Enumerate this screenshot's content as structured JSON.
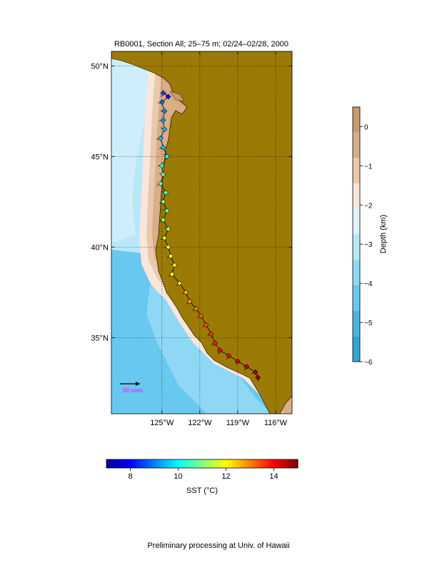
{
  "title": "RB0001, Section All; 25–75 m; 02/24–02/28, 2000",
  "footer": "Preliminary processing at Univ. of Hawaii",
  "map": {
    "lon_range": [
      -129,
      -114.7
    ],
    "lat_range": [
      30.8,
      50.8
    ],
    "lon_ticks": [
      {
        "value": -125,
        "label": "125°W"
      },
      {
        "value": -122,
        "label": "122°W"
      },
      {
        "value": -119,
        "label": "119°W"
      },
      {
        "value": -116,
        "label": "116°W"
      }
    ],
    "lat_ticks": [
      {
        "value": 50,
        "label": "50°N"
      },
      {
        "value": 45,
        "label": "45°N"
      },
      {
        "value": 40,
        "label": "40°N"
      },
      {
        "value": 35,
        "label": "35°N"
      }
    ],
    "grid": "dotted",
    "land_color": "#9b7a05",
    "scale_arrow": {
      "label": "50 cm/s",
      "color": "#ff00ff",
      "placement": "bottom-left"
    }
  },
  "depth_colorbar": {
    "label": "Depth (km)",
    "range": [
      -6,
      0.5
    ],
    "ticks": [
      {
        "value": 0,
        "label": "0"
      },
      {
        "value": -1,
        "label": "−1"
      },
      {
        "value": -2,
        "label": "−2"
      },
      {
        "value": -3,
        "label": "−3"
      },
      {
        "value": -4,
        "label": "−4"
      },
      {
        "value": -5,
        "label": "−5"
      },
      {
        "value": -6,
        "label": "−6"
      }
    ],
    "colors": [
      "#2ea6d6",
      "#49b5e3",
      "#68c8f0",
      "#8fd8f5",
      "#b8e8f8",
      "#ddf3fb",
      "#f8e6dc",
      "#e9c8ac",
      "#d9ad86",
      "#c99a6a"
    ],
    "placement": "right"
  },
  "sst_colorbar": {
    "label": "SST (°C)",
    "range": [
      7,
      15
    ],
    "ticks": [
      {
        "value": 8,
        "label": "8"
      },
      {
        "value": 10,
        "label": "10"
      },
      {
        "value": 12,
        "label": "12"
      },
      {
        "value": 14,
        "label": "14"
      }
    ],
    "colormap": [
      "#00008f",
      "#0000ff",
      "#0080ff",
      "#00ffff",
      "#80ff80",
      "#ffff00",
      "#ff8000",
      "#ff0000",
      "#800000"
    ],
    "placement": "bottom"
  },
  "track": [
    {
      "lon": -124.9,
      "lat": 48.5,
      "sst": 8.5
    },
    {
      "lon": -124.5,
      "lat": 48.3,
      "sst": 8.0
    },
    {
      "lon": -125.0,
      "lat": 48.0,
      "sst": 8.8
    },
    {
      "lon": -124.8,
      "lat": 47.5,
      "sst": 9.0
    },
    {
      "lon": -124.9,
      "lat": 47.0,
      "sst": 9.2
    },
    {
      "lon": -124.8,
      "lat": 46.5,
      "sst": 9.4
    },
    {
      "lon": -125.1,
      "lat": 46.0,
      "sst": 9.5
    },
    {
      "lon": -124.9,
      "lat": 45.5,
      "sst": 9.6
    },
    {
      "lon": -124.6,
      "lat": 45.0,
      "sst": 10.2
    },
    {
      "lon": -125.0,
      "lat": 44.5,
      "sst": 10.4
    },
    {
      "lon": -124.9,
      "lat": 44.0,
      "sst": 10.6
    },
    {
      "lon": -125.1,
      "lat": 43.5,
      "sst": 10.8
    },
    {
      "lon": -124.7,
      "lat": 43.0,
      "sst": 10.5
    },
    {
      "lon": -124.9,
      "lat": 42.5,
      "sst": 11.0
    },
    {
      "lon": -124.6,
      "lat": 42.0,
      "sst": 10.7
    },
    {
      "lon": -124.9,
      "lat": 41.5,
      "sst": 11.1
    },
    {
      "lon": -124.5,
      "lat": 41.0,
      "sst": 11.3
    },
    {
      "lon": -124.8,
      "lat": 40.5,
      "sst": 11.6
    },
    {
      "lon": -124.5,
      "lat": 40.0,
      "sst": 11.8
    },
    {
      "lon": -124.3,
      "lat": 39.5,
      "sst": 12.0
    },
    {
      "lon": -124.0,
      "lat": 39.0,
      "sst": 12.1
    },
    {
      "lon": -124.2,
      "lat": 38.5,
      "sst": 12.0
    },
    {
      "lon": -123.6,
      "lat": 38.0,
      "sst": 12.3
    },
    {
      "lon": -123.1,
      "lat": 37.5,
      "sst": 12.6
    },
    {
      "lon": -122.8,
      "lat": 37.0,
      "sst": 12.8
    },
    {
      "lon": -122.3,
      "lat": 36.6,
      "sst": 13.0
    },
    {
      "lon": -121.9,
      "lat": 36.2,
      "sst": 13.2
    },
    {
      "lon": -121.5,
      "lat": 35.7,
      "sst": 13.4
    },
    {
      "lon": -121.1,
      "lat": 35.2,
      "sst": 13.6
    },
    {
      "lon": -120.8,
      "lat": 34.7,
      "sst": 13.8
    },
    {
      "lon": -120.4,
      "lat": 34.3,
      "sst": 14.0
    },
    {
      "lon": -119.7,
      "lat": 34.0,
      "sst": 14.1
    },
    {
      "lon": -119.0,
      "lat": 33.7,
      "sst": 14.3
    },
    {
      "lon": -118.3,
      "lat": 33.4,
      "sst": 14.5
    },
    {
      "lon": -117.6,
      "lat": 33.1,
      "sst": 14.8
    },
    {
      "lon": -117.4,
      "lat": 32.8,
      "sst": 14.9
    }
  ]
}
